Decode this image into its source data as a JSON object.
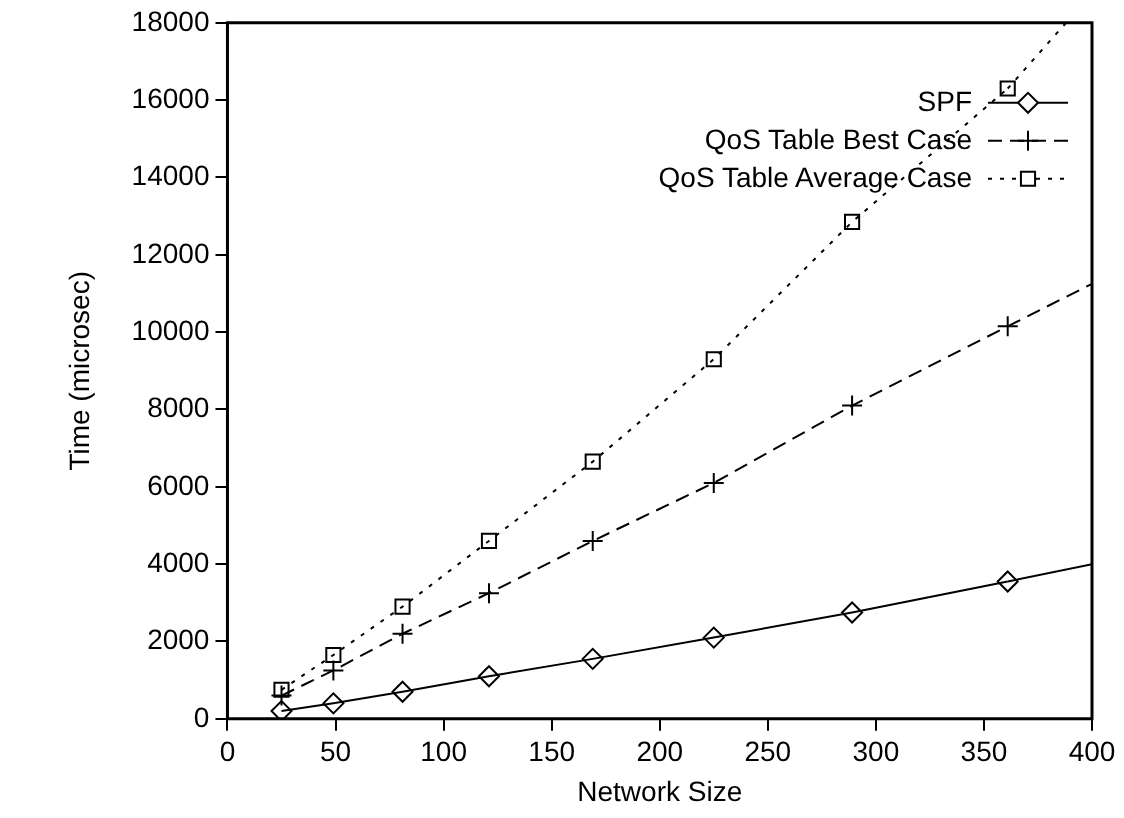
{
  "chart_data": {
    "type": "line",
    "xlabel": "Network Size",
    "ylabel": "Time (microsec)",
    "xlim": [
      0,
      400
    ],
    "xticks": [
      0,
      50,
      100,
      150,
      200,
      250,
      300,
      350,
      400
    ],
    "ylim": [
      0,
      18000
    ],
    "yticks": [
      0,
      2000,
      4000,
      6000,
      8000,
      10000,
      12000,
      14000,
      16000,
      18000
    ],
    "grid": false,
    "legend": "top right",
    "series": [
      {
        "name": "SPF",
        "color": "#000000",
        "marker": "diamond",
        "line_style": "solid",
        "x": [
          25,
          49,
          81,
          121,
          169,
          225,
          289,
          361
        ],
        "values": [
          200,
          400,
          700,
          1100,
          1550,
          2100,
          2750,
          3550
        ]
      },
      {
        "name": "QoS Table Best Case",
        "color": "#000000",
        "marker": "cross",
        "line_style": "dashed",
        "x": [
          25,
          49,
          81,
          121,
          169,
          225,
          289,
          361
        ],
        "values": [
          600,
          1250,
          2200,
          3250,
          4600,
          6100,
          8100,
          10150
        ]
      },
      {
        "name": "QoS Table Average Case",
        "color": "#000000",
        "marker": "square",
        "line_style": "dotted",
        "x": [
          25,
          49,
          81,
          121,
          169,
          225,
          289,
          361
        ],
        "values": [
          750,
          1650,
          2900,
          4600,
          6650,
          9300,
          12850,
          16300
        ]
      },
      {
        "color": "#000000",
        "marker": "none",
        "line_style": "solid",
        "x": [
          361,
          400
        ],
        "values": [
          3550,
          4000
        ]
      },
      {
        "color": "#000000",
        "marker": "none",
        "line_style": "dashed",
        "x": [
          361,
          400
        ],
        "values": [
          10150,
          11250
        ]
      },
      {
        "color": "#000000",
        "marker": "none",
        "line_style": "dotted",
        "x": [
          361,
          388
        ],
        "values": [
          16300,
          18000
        ]
      }
    ]
  }
}
